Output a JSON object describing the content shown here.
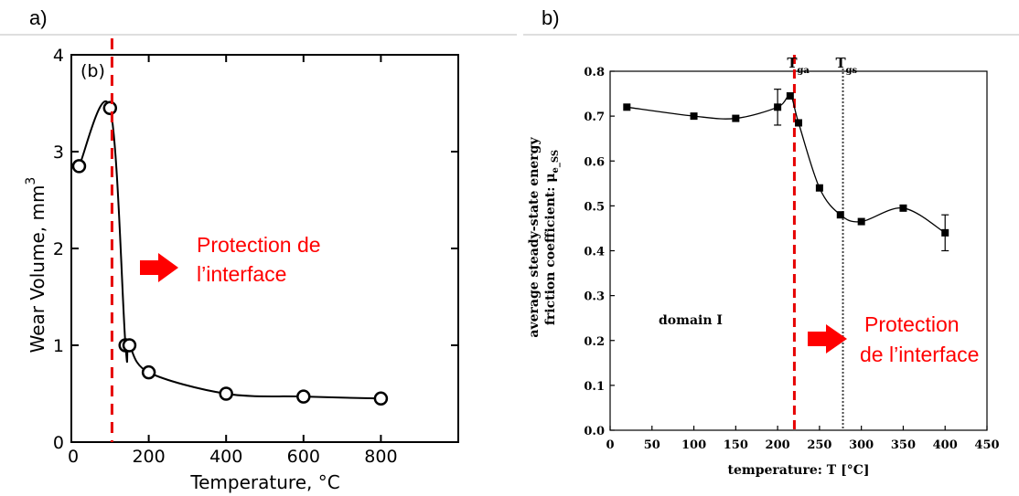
{
  "panels": {
    "a_label": "a)",
    "b_label": "b)"
  },
  "colors": {
    "marker_line": "#e60000",
    "annotation": "#ff0000",
    "dotted_line": "#444444"
  },
  "chart_data": [
    {
      "type": "line",
      "panel": "a",
      "inset_label": "(b)",
      "xlabel": "Temperature, °C",
      "ylabel": "Wear  Volume,  mm",
      "ylabel_superscript": "3",
      "xlim": [
        0,
        1000
      ],
      "ylim": [
        0,
        4
      ],
      "x_ticks": [
        0,
        200,
        400,
        600,
        800
      ],
      "y_ticks": [
        0,
        1,
        2,
        3,
        4
      ],
      "marker": "open-circle",
      "series": [
        {
          "x": [
            20,
            100,
            140,
            150,
            200,
            400,
            600,
            800
          ],
          "y": [
            2.85,
            3.45,
            1.0,
            1.0,
            0.72,
            0.5,
            0.47,
            0.45
          ]
        }
      ],
      "vline": {
        "x": 105,
        "style": "red-dashed"
      },
      "annotation": {
        "lines": [
          "Protection de",
          "l’interface"
        ],
        "arrow": "red-right"
      }
    },
    {
      "type": "line",
      "panel": "b",
      "xlabel": "temperature: T [°C]",
      "ylabel_line1": "average steady-state energy",
      "ylabel_line2": "friction coefficient: μ",
      "ylabel_sub": "e_SS",
      "xlim": [
        0,
        450
      ],
      "ylim": [
        0.0,
        0.8
      ],
      "x_ticks": [
        0,
        50,
        100,
        150,
        200,
        250,
        300,
        350,
        400,
        450
      ],
      "y_ticks": [
        "0.0",
        "0.1",
        "0.2",
        "0.3",
        "0.4",
        "0.5",
        "0.6",
        "0.7",
        "0.8"
      ],
      "marker": "filled-square",
      "series": [
        {
          "x": [
            20,
            100,
            150,
            200,
            215,
            225,
            250,
            275,
            300,
            350,
            400
          ],
          "y": [
            0.72,
            0.7,
            0.695,
            0.72,
            0.745,
            0.685,
            0.54,
            0.48,
            0.465,
            0.495,
            0.44
          ]
        }
      ],
      "error_bars": [
        {
          "x": 200,
          "low": 0.68,
          "high": 0.76
        },
        {
          "x": 400,
          "low": 0.4,
          "high": 0.48
        }
      ],
      "vlines": [
        {
          "x": 220,
          "style": "red-dashed",
          "label": "T",
          "sub": "ga"
        },
        {
          "x": 278,
          "style": "black-dotted",
          "label": "T",
          "sub": "gs"
        }
      ],
      "region_text": "domain I",
      "annotation": {
        "lines": [
          "Protection",
          "de l’interface"
        ],
        "arrow": "red-right"
      }
    }
  ]
}
